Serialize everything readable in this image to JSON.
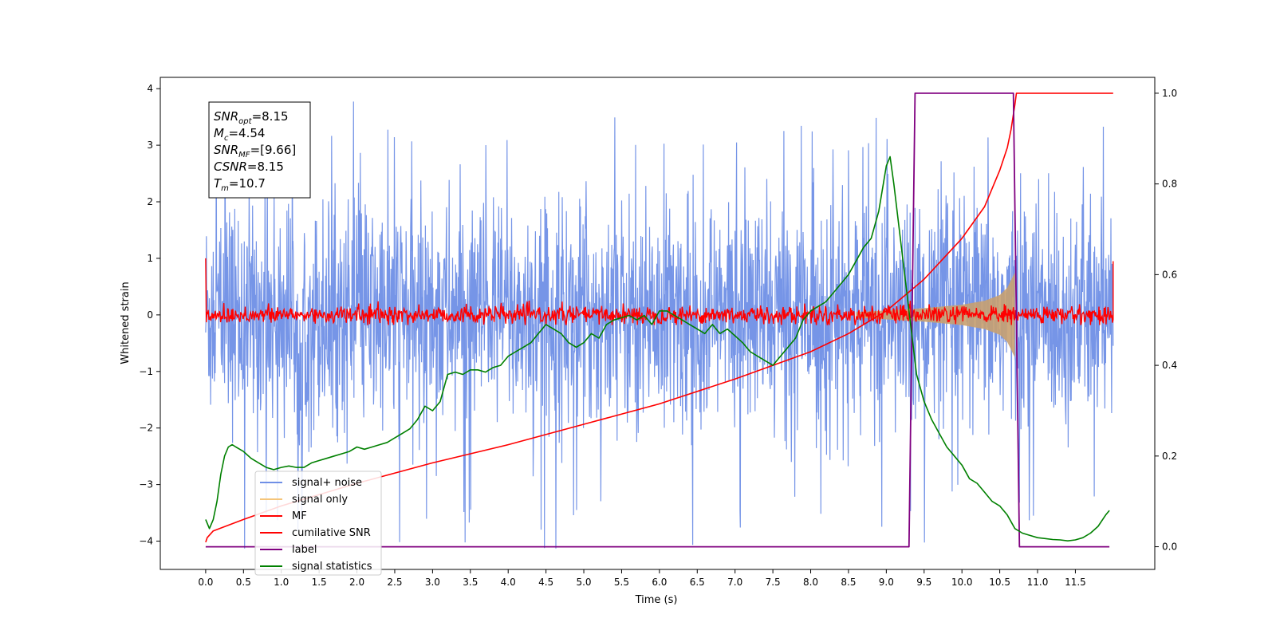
{
  "chart_data": {
    "type": "line",
    "xlabel": "Time (s)",
    "ylabel_left": "Whitened strain",
    "ylabel_right": "",
    "xlim": [
      -0.6,
      12.55
    ],
    "ylim_left": [
      -4.5,
      4.2
    ],
    "ylim_right": [
      -0.05,
      1.035
    ],
    "x_ticks": [
      "0.0",
      "0.5",
      "1.0",
      "1.5",
      "2.0",
      "2.5",
      "3.0",
      "3.5",
      "4.0",
      "4.5",
      "5.0",
      "5.5",
      "6.0",
      "6.5",
      "7.0",
      "7.5",
      "8.0",
      "8.5",
      "9.0",
      "9.5",
      "10.0",
      "10.5",
      "11.0",
      "11.5"
    ],
    "y_ticks_left": [
      "4",
      "3",
      "2",
      "1",
      "0",
      "−1",
      "−2",
      "−3",
      "−4"
    ],
    "y_ticks_right": [
      "1.0",
      "0.8",
      "0.6",
      "0.4",
      "0.2",
      "0.0"
    ],
    "grid": false,
    "legend_position": "lower-left",
    "legend": [
      {
        "label": "signal+ noise",
        "color": "#6f8fe6"
      },
      {
        "label": "signal only",
        "color": "#f5c57a"
      },
      {
        "label": "MF",
        "color": "#ff0000"
      },
      {
        "label": "cumilative SNR",
        "color": "#ff0000"
      },
      {
        "label": "label",
        "color": "#800080"
      },
      {
        "label": "signal statistics",
        "color": "#008000"
      }
    ],
    "annotation": [
      {
        "name": "SNR",
        "sub": "opt",
        "value": "=8.15"
      },
      {
        "name": "M",
        "sub": "c",
        "value": "=4.54"
      },
      {
        "name": "SNR",
        "sub": "MF",
        "value": "=[9.66]"
      },
      {
        "name": "CSNR",
        "sub": "",
        "value": "=8.15"
      },
      {
        "name": "T",
        "sub": "m",
        "value": "=10.7"
      }
    ],
    "series": [
      {
        "name": "signal+ noise",
        "axis": "left",
        "color": "#6f8fe6",
        "x_range": [
          0.0,
          12.0
        ],
        "amplitude_envelope": [
          -4.15,
          3.8
        ],
        "note_values": "dense noise, roughly ±2 with peaks to about 3.8 and troughs to about -4.15"
      },
      {
        "name": "signal only",
        "axis": "left",
        "color": "#f5c57a",
        "x": [
          8.6,
          9.0,
          9.5,
          10.0,
          10.3,
          10.5,
          10.6,
          10.68,
          10.7
        ],
        "envelope": [
          0.05,
          0.08,
          0.12,
          0.18,
          0.25,
          0.35,
          0.48,
          0.7,
          0.75
        ]
      },
      {
        "name": "MF",
        "axis": "left",
        "color": "#ff0000",
        "x_range": [
          0.0,
          12.0
        ],
        "baseline": 0.0,
        "band": 0.18,
        "start_value": 1.0,
        "end_value": 0.95
      },
      {
        "name": "cumilative SNR",
        "axis": "right",
        "color": "#ff0000",
        "x": [
          0.0,
          0.02,
          0.1,
          0.5,
          1.0,
          2.0,
          3.0,
          4.0,
          5.0,
          6.0,
          7.0,
          8.0,
          8.5,
          9.0,
          9.5,
          10.0,
          10.3,
          10.5,
          10.6,
          10.65,
          10.7,
          10.72,
          12.0
        ],
        "values": [
          0.01,
          0.02,
          0.035,
          0.06,
          0.09,
          0.14,
          0.185,
          0.225,
          0.27,
          0.315,
          0.37,
          0.43,
          0.47,
          0.52,
          0.59,
          0.68,
          0.75,
          0.83,
          0.88,
          0.92,
          0.975,
          1.0,
          1.0
        ]
      },
      {
        "name": "label",
        "axis": "right",
        "color": "#800080",
        "x": [
          0.0,
          9.3,
          9.38,
          10.68,
          10.76,
          11.95
        ],
        "values": [
          0.0,
          0.0,
          1.0,
          1.0,
          0.0,
          0.0
        ]
      },
      {
        "name": "signal statistics",
        "axis": "right",
        "color": "#008000",
        "x": [
          0.0,
          0.05,
          0.1,
          0.15,
          0.2,
          0.25,
          0.3,
          0.35,
          0.4,
          0.45,
          0.5,
          0.6,
          0.7,
          0.8,
          0.9,
          1.0,
          1.1,
          1.2,
          1.3,
          1.4,
          1.5,
          1.6,
          1.7,
          1.8,
          1.9,
          2.0,
          2.1,
          2.2,
          2.3,
          2.4,
          2.5,
          2.6,
          2.7,
          2.8,
          2.9,
          3.0,
          3.1,
          3.2,
          3.3,
          3.4,
          3.5,
          3.6,
          3.7,
          3.8,
          3.9,
          4.0,
          4.1,
          4.2,
          4.3,
          4.4,
          4.5,
          4.6,
          4.7,
          4.8,
          4.9,
          5.0,
          5.1,
          5.2,
          5.3,
          5.4,
          5.5,
          5.6,
          5.7,
          5.8,
          5.9,
          6.0,
          6.1,
          6.2,
          6.3,
          6.4,
          6.5,
          6.6,
          6.7,
          6.8,
          6.9,
          7.0,
          7.1,
          7.2,
          7.3,
          7.4,
          7.5,
          7.6,
          7.7,
          7.8,
          7.9,
          8.0,
          8.1,
          8.2,
          8.3,
          8.4,
          8.5,
          8.6,
          8.7,
          8.8,
          8.9,
          9.0,
          9.05,
          9.1,
          9.2,
          9.3,
          9.4,
          9.5,
          9.6,
          9.7,
          9.8,
          9.9,
          10.0,
          10.1,
          10.2,
          10.3,
          10.4,
          10.5,
          10.6,
          10.7,
          10.8,
          10.9,
          11.0,
          11.1,
          11.2,
          11.3,
          11.4,
          11.5,
          11.6,
          11.7,
          11.8,
          11.9,
          11.95
        ],
        "values": [
          0.06,
          0.04,
          0.06,
          0.1,
          0.16,
          0.2,
          0.22,
          0.225,
          0.22,
          0.215,
          0.21,
          0.195,
          0.185,
          0.175,
          0.17,
          0.175,
          0.178,
          0.175,
          0.175,
          0.185,
          0.19,
          0.195,
          0.2,
          0.205,
          0.21,
          0.22,
          0.215,
          0.22,
          0.225,
          0.23,
          0.24,
          0.25,
          0.26,
          0.28,
          0.31,
          0.3,
          0.32,
          0.38,
          0.385,
          0.38,
          0.39,
          0.39,
          0.385,
          0.395,
          0.4,
          0.42,
          0.43,
          0.44,
          0.45,
          0.47,
          0.49,
          0.48,
          0.47,
          0.45,
          0.44,
          0.45,
          0.47,
          0.46,
          0.49,
          0.5,
          0.505,
          0.51,
          0.5,
          0.51,
          0.49,
          0.52,
          0.52,
          0.51,
          0.5,
          0.49,
          0.48,
          0.47,
          0.49,
          0.47,
          0.48,
          0.465,
          0.45,
          0.43,
          0.42,
          0.41,
          0.4,
          0.42,
          0.44,
          0.46,
          0.5,
          0.52,
          0.53,
          0.54,
          0.56,
          0.58,
          0.6,
          0.63,
          0.66,
          0.68,
          0.74,
          0.84,
          0.86,
          0.8,
          0.66,
          0.52,
          0.38,
          0.32,
          0.28,
          0.25,
          0.22,
          0.2,
          0.18,
          0.15,
          0.14,
          0.12,
          0.1,
          0.09,
          0.07,
          0.04,
          0.03,
          0.025,
          0.02,
          0.018,
          0.016,
          0.015,
          0.013,
          0.015,
          0.02,
          0.03,
          0.045,
          0.07,
          0.08
        ]
      }
    ]
  }
}
